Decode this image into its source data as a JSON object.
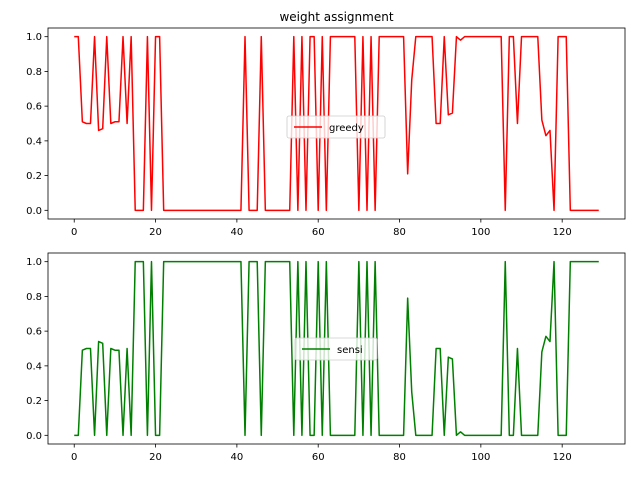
{
  "chart_data": [
    {
      "type": "line",
      "title": "weight assignment",
      "xlabel": "",
      "ylabel": "",
      "xlim": [
        -6.45,
        135.45
      ],
      "ylim": [
        -0.05,
        1.05
      ],
      "xticks": [
        0,
        20,
        40,
        60,
        80,
        100,
        120
      ],
      "yticks": [
        0.0,
        0.2,
        0.4,
        0.6,
        0.8,
        1.0
      ],
      "xtick_labels": [
        "0",
        "20",
        "40",
        "60",
        "80",
        "100",
        "120"
      ],
      "ytick_labels": [
        "0.0",
        "0.2",
        "0.4",
        "0.6",
        "0.8",
        "1.0"
      ],
      "legend": {
        "placement": "center"
      },
      "grid": false,
      "series": [
        {
          "name": "greedy",
          "color": "#ff0000",
          "x": [
            0,
            1,
            2,
            3,
            4,
            5,
            6,
            7,
            8,
            9,
            10,
            11,
            12,
            13,
            14,
            15,
            16,
            17,
            18,
            19,
            20,
            21,
            22,
            23,
            24,
            25,
            26,
            27,
            28,
            29,
            30,
            31,
            32,
            33,
            34,
            35,
            36,
            37,
            38,
            39,
            40,
            41,
            42,
            43,
            44,
            45,
            46,
            47,
            48,
            49,
            50,
            51,
            52,
            53,
            54,
            55,
            56,
            57,
            58,
            59,
            60,
            61,
            62,
            63,
            64,
            65,
            66,
            67,
            68,
            69,
            70,
            71,
            72,
            73,
            74,
            75,
            76,
            77,
            78,
            79,
            80,
            81,
            82,
            83,
            84,
            85,
            86,
            87,
            88,
            89,
            90,
            91,
            92,
            93,
            94,
            95,
            96,
            97,
            98,
            99,
            100,
            101,
            102,
            103,
            104,
            105,
            106,
            107,
            108,
            109,
            110,
            111,
            112,
            113,
            114,
            115,
            116,
            117,
            118,
            119,
            120,
            121,
            122,
            123,
            124,
            125,
            126,
            127,
            128,
            129
          ],
          "values": [
            1.0,
            1.0,
            0.51,
            0.5,
            0.5,
            1.0,
            0.46,
            0.47,
            1.0,
            0.5,
            0.51,
            0.51,
            1.0,
            0.5,
            1.0,
            0.0,
            0.0,
            0.0,
            1.0,
            0.0,
            1.0,
            1.0,
            0.0,
            0.0,
            0.0,
            0.0,
            0.0,
            0.0,
            0.0,
            0.0,
            0.0,
            0.0,
            0.0,
            0.0,
            0.0,
            0.0,
            0.0,
            0.0,
            0.0,
            0.0,
            0.0,
            0.0,
            1.0,
            0.0,
            0.0,
            0.0,
            1.0,
            0.0,
            0.0,
            0.0,
            0.0,
            0.0,
            0.0,
            0.0,
            1.0,
            0.0,
            1.0,
            0.0,
            1.0,
            1.0,
            0.0,
            1.0,
            0.0,
            1.0,
            1.0,
            1.0,
            1.0,
            1.0,
            1.0,
            1.0,
            0.0,
            1.0,
            0.0,
            1.0,
            0.0,
            1.0,
            1.0,
            1.0,
            1.0,
            1.0,
            1.0,
            1.0,
            0.21,
            0.75,
            1.0,
            1.0,
            1.0,
            1.0,
            1.0,
            0.5,
            0.5,
            1.0,
            0.55,
            0.56,
            1.0,
            0.98,
            1.0,
            1.0,
            1.0,
            1.0,
            1.0,
            1.0,
            1.0,
            1.0,
            1.0,
            1.0,
            0.0,
            1.0,
            1.0,
            0.5,
            1.0,
            1.0,
            1.0,
            1.0,
            1.0,
            0.52,
            0.43,
            0.46,
            0.0,
            1.0,
            1.0,
            1.0,
            0.0,
            0.0,
            0.0,
            0.0,
            0.0,
            0.0,
            0.0,
            0.0
          ]
        }
      ]
    },
    {
      "type": "line",
      "title": "",
      "xlabel": "",
      "ylabel": "",
      "xlim": [
        -6.45,
        135.45
      ],
      "ylim": [
        -0.05,
        1.05
      ],
      "xticks": [
        0,
        20,
        40,
        60,
        80,
        100,
        120
      ],
      "yticks": [
        0.0,
        0.2,
        0.4,
        0.6,
        0.8,
        1.0
      ],
      "xtick_labels": [
        "0",
        "20",
        "40",
        "60",
        "80",
        "100",
        "120"
      ],
      "ytick_labels": [
        "0.0",
        "0.2",
        "0.4",
        "0.6",
        "0.8",
        "1.0"
      ],
      "legend": {
        "placement": "center"
      },
      "grid": false,
      "series": [
        {
          "name": "sensi",
          "color": "#008000",
          "x": [
            0,
            1,
            2,
            3,
            4,
            5,
            6,
            7,
            8,
            9,
            10,
            11,
            12,
            13,
            14,
            15,
            16,
            17,
            18,
            19,
            20,
            21,
            22,
            23,
            24,
            25,
            26,
            27,
            28,
            29,
            30,
            31,
            32,
            33,
            34,
            35,
            36,
            37,
            38,
            39,
            40,
            41,
            42,
            43,
            44,
            45,
            46,
            47,
            48,
            49,
            50,
            51,
            52,
            53,
            54,
            55,
            56,
            57,
            58,
            59,
            60,
            61,
            62,
            63,
            64,
            65,
            66,
            67,
            68,
            69,
            70,
            71,
            72,
            73,
            74,
            75,
            76,
            77,
            78,
            79,
            80,
            81,
            82,
            83,
            84,
            85,
            86,
            87,
            88,
            89,
            90,
            91,
            92,
            93,
            94,
            95,
            96,
            97,
            98,
            99,
            100,
            101,
            102,
            103,
            104,
            105,
            106,
            107,
            108,
            109,
            110,
            111,
            112,
            113,
            114,
            115,
            116,
            117,
            118,
            119,
            120,
            121,
            122,
            123,
            124,
            125,
            126,
            127,
            128,
            129
          ],
          "values": [
            0.0,
            0.0,
            0.49,
            0.5,
            0.5,
            0.0,
            0.54,
            0.53,
            0.0,
            0.5,
            0.49,
            0.49,
            0.0,
            0.5,
            0.0,
            1.0,
            1.0,
            1.0,
            0.0,
            1.0,
            0.0,
            0.0,
            1.0,
            1.0,
            1.0,
            1.0,
            1.0,
            1.0,
            1.0,
            1.0,
            1.0,
            1.0,
            1.0,
            1.0,
            1.0,
            1.0,
            1.0,
            1.0,
            1.0,
            1.0,
            1.0,
            1.0,
            0.0,
            1.0,
            1.0,
            1.0,
            0.0,
            1.0,
            1.0,
            1.0,
            1.0,
            1.0,
            1.0,
            1.0,
            0.0,
            1.0,
            0.0,
            1.0,
            0.0,
            0.0,
            1.0,
            0.0,
            1.0,
            0.0,
            0.0,
            0.0,
            0.0,
            0.0,
            0.0,
            0.0,
            1.0,
            0.0,
            1.0,
            0.0,
            1.0,
            0.0,
            0.0,
            0.0,
            0.0,
            0.0,
            0.0,
            0.0,
            0.79,
            0.25,
            0.0,
            0.0,
            0.0,
            0.0,
            0.0,
            0.5,
            0.5,
            0.0,
            0.45,
            0.44,
            0.0,
            0.02,
            0.0,
            0.0,
            0.0,
            0.0,
            0.0,
            0.0,
            0.0,
            0.0,
            0.0,
            0.0,
            1.0,
            0.0,
            0.0,
            0.5,
            0.0,
            0.0,
            0.0,
            0.0,
            0.0,
            0.48,
            0.57,
            0.54,
            1.0,
            0.0,
            0.0,
            0.0,
            1.0,
            1.0,
            1.0,
            1.0,
            1.0,
            1.0,
            1.0,
            1.0
          ]
        }
      ]
    }
  ]
}
